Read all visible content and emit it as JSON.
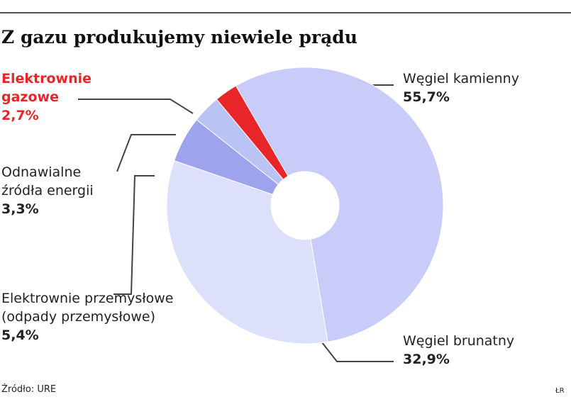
{
  "chart_data": {
    "type": "donut",
    "title": "Z gazu produkujemy niewiele prądu",
    "categories": [
      "Węgiel kamienny",
      "Węgiel brunatny",
      "Elektrownie przemysłowe (odpady przemysłowe)",
      "Odnawialne źródła energii",
      "Elektrownie gazowe"
    ],
    "values": [
      55.7,
      32.9,
      5.4,
      3.3,
      2.7
    ],
    "value_labels": [
      "55,7%",
      "32,9%",
      "5,4%",
      "3,3%",
      "2,7%"
    ],
    "colors": [
      "#c9ccf8",
      "#dde0fb",
      "#9ea3ee",
      "#b9c3f4",
      "#e8262a"
    ],
    "source": "Źródło: URE",
    "credit": "ŁR"
  }
}
